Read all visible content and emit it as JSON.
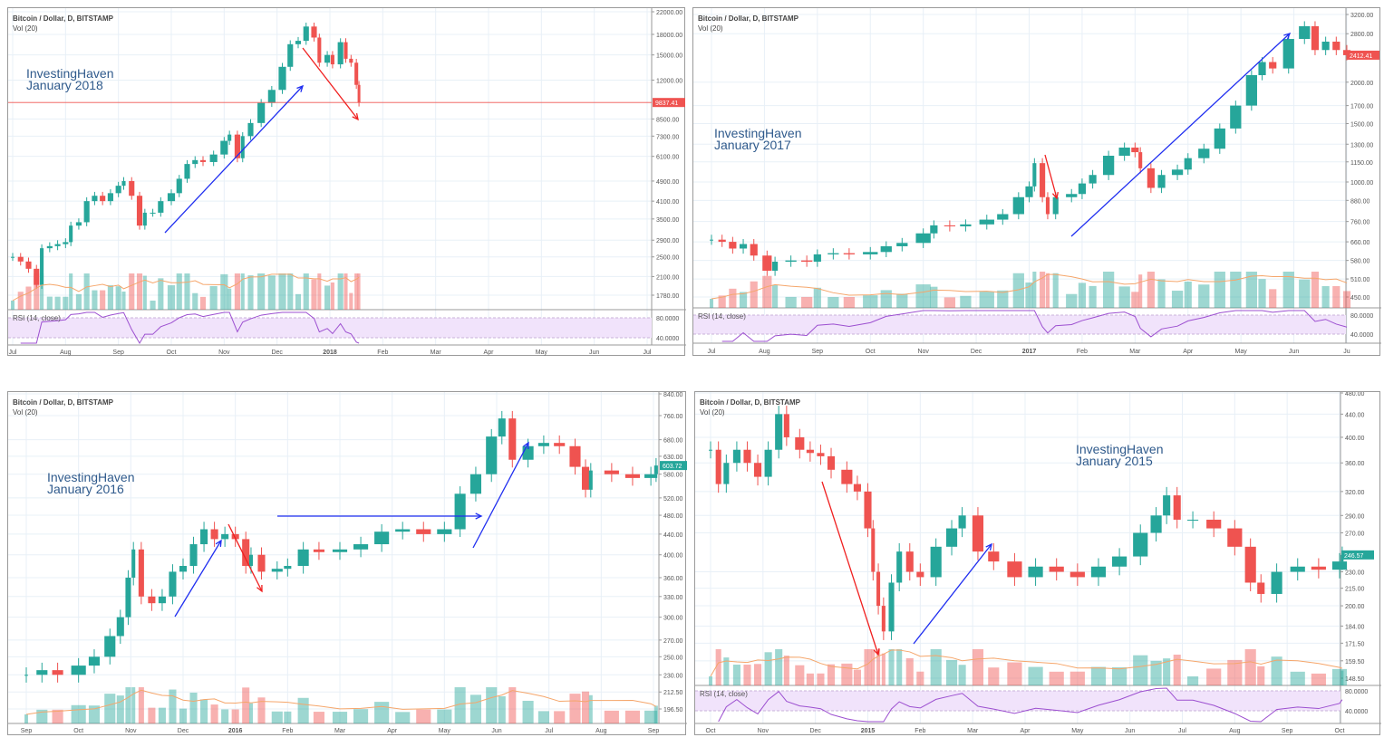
{
  "chart_data": [
    {
      "type": "candlestick",
      "title": "Bitcoin / Dollar, D, BITSTAMP",
      "volume_label": "Vol (20)",
      "rsi_label": "RSI (14, close)",
      "annotation": [
        "InvestingHaven",
        "January 2018"
      ],
      "last_price": "9837.41",
      "last_color": "#ef5350",
      "y_ticks": [
        22000,
        18000,
        15000,
        12000,
        8500,
        7300,
        6100,
        4900,
        4100,
        3500,
        2900,
        2500,
        2100,
        1780
      ],
      "rsi_ticks": [
        "80.0000",
        "40.0000"
      ],
      "x_ticks": [
        "Jul",
        "Aug",
        "Sep",
        "Oct",
        "Nov",
        "Dec",
        "2018",
        "Feb",
        "Mar",
        "Apr",
        "May",
        "Jun",
        "Jul"
      ],
      "closes": [
        [
          0,
          2500
        ],
        [
          0.15,
          2400
        ],
        [
          0.3,
          2250
        ],
        [
          0.45,
          1950
        ],
        [
          0.55,
          2700
        ],
        [
          0.7,
          2750
        ],
        [
          0.85,
          2800
        ],
        [
          1,
          2850
        ],
        [
          1.1,
          3300
        ],
        [
          1.25,
          3400
        ],
        [
          1.4,
          4100
        ],
        [
          1.55,
          4300
        ],
        [
          1.7,
          4100
        ],
        [
          1.85,
          4400
        ],
        [
          2,
          4700
        ],
        [
          2.1,
          4900
        ],
        [
          2.25,
          4300
        ],
        [
          2.4,
          3300
        ],
        [
          2.5,
          3700
        ],
        [
          2.65,
          3700
        ],
        [
          2.8,
          4100
        ],
        [
          3,
          4400
        ],
        [
          3.15,
          5000
        ],
        [
          3.3,
          5700
        ],
        [
          3.45,
          5900
        ],
        [
          3.6,
          5800
        ],
        [
          3.8,
          6200
        ],
        [
          4,
          7000
        ],
        [
          4.1,
          7400
        ],
        [
          4.25,
          6000
        ],
        [
          4.35,
          7300
        ],
        [
          4.5,
          8200
        ],
        [
          4.7,
          9800
        ],
        [
          4.9,
          11000
        ],
        [
          5.1,
          13500
        ],
        [
          5.25,
          16500
        ],
        [
          5.4,
          17000
        ],
        [
          5.55,
          19300
        ],
        [
          5.7,
          17500
        ],
        [
          5.8,
          14000
        ],
        [
          5.95,
          15000
        ],
        [
          6.05,
          13800
        ],
        [
          6.2,
          16800
        ],
        [
          6.3,
          14500
        ],
        [
          6.4,
          14000
        ],
        [
          6.5,
          11500
        ],
        [
          6.55,
          9837.41
        ]
      ]
    },
    {
      "type": "candlestick",
      "title": "Bitcoin / Dollar, D, BITSTAMP",
      "volume_label": "Vol (20)",
      "rsi_label": "RSI (14, close)",
      "annotation": [
        "InvestingHaven",
        "January 2017"
      ],
      "last_price": "2412.41",
      "last_color": "#ef5350",
      "y_ticks": [
        3200,
        2800,
        2000,
        1700,
        1500,
        1300,
        1150,
        1000,
        880,
        760,
        660,
        580,
        510,
        450
      ],
      "rsi_ticks": [
        "80.0000",
        "40.0000"
      ],
      "x_ticks": [
        "Jul",
        "Aug",
        "Sep",
        "Oct",
        "Nov",
        "Dec",
        "2017",
        "Feb",
        "Mar",
        "Apr",
        "May",
        "Jun",
        "Ju"
      ],
      "closes": [
        [
          0,
          670
        ],
        [
          0.2,
          660
        ],
        [
          0.4,
          630
        ],
        [
          0.6,
          650
        ],
        [
          0.8,
          600
        ],
        [
          1.05,
          540
        ],
        [
          1.2,
          575
        ],
        [
          1.5,
          580
        ],
        [
          1.8,
          575
        ],
        [
          2,
          605
        ],
        [
          2.3,
          610
        ],
        [
          2.6,
          605
        ],
        [
          3,
          615
        ],
        [
          3.3,
          640
        ],
        [
          3.6,
          655
        ],
        [
          4,
          700
        ],
        [
          4.2,
          740
        ],
        [
          4.5,
          735
        ],
        [
          4.8,
          745
        ],
        [
          5.2,
          770
        ],
        [
          5.5,
          800
        ],
        [
          5.8,
          900
        ],
        [
          6,
          970
        ],
        [
          6.1,
          1140
        ],
        [
          6.25,
          900
        ],
        [
          6.35,
          800
        ],
        [
          6.5,
          900
        ],
        [
          6.8,
          920
        ],
        [
          7,
          990
        ],
        [
          7.2,
          1050
        ],
        [
          7.5,
          1200
        ],
        [
          7.8,
          1270
        ],
        [
          8,
          1230
        ],
        [
          8.1,
          1100
        ],
        [
          8.3,
          960
        ],
        [
          8.5,
          1050
        ],
        [
          8.8,
          1090
        ],
        [
          9,
          1180
        ],
        [
          9.3,
          1260
        ],
        [
          9.6,
          1450
        ],
        [
          9.9,
          1700
        ],
        [
          10.2,
          2100
        ],
        [
          10.4,
          2300
        ],
        [
          10.6,
          2200
        ],
        [
          10.9,
          2700
        ],
        [
          11.2,
          2950
        ],
        [
          11.4,
          2500
        ],
        [
          11.6,
          2650
        ],
        [
          11.8,
          2500
        ],
        [
          12,
          2412.41
        ]
      ]
    },
    {
      "type": "candlestick",
      "title": "Bitcoin / Dollar, D, BITSTAMP",
      "volume_label": "Vol (20)",
      "rsi_label": "",
      "annotation": [
        "InvestingHaven",
        "January 2016"
      ],
      "last_price": "603.72",
      "last_color": "#26a69a",
      "y_ticks": [
        840,
        760,
        680,
        630,
        580,
        520,
        480,
        440,
        400,
        360,
        330,
        300,
        270,
        250,
        230,
        212.5,
        196.5
      ],
      "rsi_ticks": [],
      "x_ticks": [
        "Sep",
        "Oct",
        "Nov",
        "Dec",
        "2016",
        "Feb",
        "Mar",
        "Apr",
        "May",
        "Jun",
        "Jul",
        "Aug",
        "Sep"
      ],
      "closes": [
        [
          0,
          230
        ],
        [
          0.3,
          235
        ],
        [
          0.6,
          230
        ],
        [
          1,
          240
        ],
        [
          1.3,
          250
        ],
        [
          1.6,
          275
        ],
        [
          1.8,
          300
        ],
        [
          1.95,
          360
        ],
        [
          2.05,
          410
        ],
        [
          2.2,
          330
        ],
        [
          2.4,
          320
        ],
        [
          2.6,
          330
        ],
        [
          2.8,
          370
        ],
        [
          3,
          380
        ],
        [
          3.2,
          420
        ],
        [
          3.4,
          450
        ],
        [
          3.6,
          430
        ],
        [
          3.8,
          440
        ],
        [
          4,
          430
        ],
        [
          4.2,
          380
        ],
        [
          4.3,
          400
        ],
        [
          4.5,
          370
        ],
        [
          4.8,
          375
        ],
        [
          5,
          380
        ],
        [
          5.3,
          410
        ],
        [
          5.6,
          405
        ],
        [
          6,
          410
        ],
        [
          6.4,
          420
        ],
        [
          6.8,
          445
        ],
        [
          7.2,
          450
        ],
        [
          7.6,
          440
        ],
        [
          8,
          450
        ],
        [
          8.3,
          530
        ],
        [
          8.6,
          580
        ],
        [
          8.9,
          690
        ],
        [
          9.1,
          750
        ],
        [
          9.3,
          620
        ],
        [
          9.6,
          660
        ],
        [
          9.9,
          670
        ],
        [
          10.2,
          660
        ],
        [
          10.5,
          600
        ],
        [
          10.7,
          540
        ],
        [
          10.8,
          590
        ],
        [
          11.2,
          580
        ],
        [
          11.6,
          570
        ],
        [
          11.95,
          580
        ],
        [
          12.05,
          603.72
        ]
      ]
    },
    {
      "type": "candlestick",
      "title": "Bitcoin / Dollar, D, BITSTAMP",
      "volume_label": "Vol (20)",
      "rsi_label": "RSI (14, close)",
      "annotation": [
        "InvestingHaven",
        "January 2015"
      ],
      "last_price": "246.57",
      "last_color": "#26a69a",
      "y_ticks": [
        480,
        440,
        400,
        360,
        320,
        290,
        270,
        230,
        215,
        200,
        184,
        171.5,
        159.5,
        148.5
      ],
      "rsi_ticks": [
        "80.0000",
        "40.0000"
      ],
      "x_ticks": [
        "Oct",
        "Nov",
        "Dec",
        "2015",
        "Feb",
        "Mar",
        "Apr",
        "May",
        "Jun",
        "Jul",
        "Aug",
        "Sep",
        "Oct"
      ],
      "closes": [
        [
          0,
          380
        ],
        [
          0.15,
          330
        ],
        [
          0.3,
          360
        ],
        [
          0.5,
          380
        ],
        [
          0.7,
          360
        ],
        [
          0.9,
          340
        ],
        [
          1.1,
          380
        ],
        [
          1.3,
          440
        ],
        [
          1.45,
          400
        ],
        [
          1.7,
          380
        ],
        [
          1.9,
          375
        ],
        [
          2.1,
          370
        ],
        [
          2.3,
          350
        ],
        [
          2.6,
          330
        ],
        [
          2.8,
          320
        ],
        [
          3,
          275
        ],
        [
          3.1,
          230
        ],
        [
          3.2,
          200
        ],
        [
          3.3,
          180
        ],
        [
          3.45,
          220
        ],
        [
          3.6,
          250
        ],
        [
          3.8,
          230
        ],
        [
          4,
          225
        ],
        [
          4.3,
          255
        ],
        [
          4.6,
          275
        ],
        [
          4.8,
          290
        ],
        [
          5.1,
          250
        ],
        [
          5.4,
          240
        ],
        [
          5.8,
          225
        ],
        [
          6.2,
          235
        ],
        [
          6.6,
          230
        ],
        [
          7,
          225
        ],
        [
          7.4,
          235
        ],
        [
          7.8,
          245
        ],
        [
          8.2,
          270
        ],
        [
          8.5,
          290
        ],
        [
          8.7,
          315
        ],
        [
          8.9,
          285
        ],
        [
          9.2,
          285
        ],
        [
          9.6,
          275
        ],
        [
          10,
          255
        ],
        [
          10.3,
          220
        ],
        [
          10.5,
          210
        ],
        [
          10.8,
          230
        ],
        [
          11.2,
          235
        ],
        [
          11.6,
          232
        ],
        [
          12,
          240
        ],
        [
          12.05,
          246.57
        ]
      ]
    }
  ],
  "colors": {
    "up": "#26a69a",
    "down": "#ef5350",
    "rsi": "#9c4fd0",
    "arrow_blue": "#1f2ef0",
    "arrow_red": "#f02020"
  }
}
